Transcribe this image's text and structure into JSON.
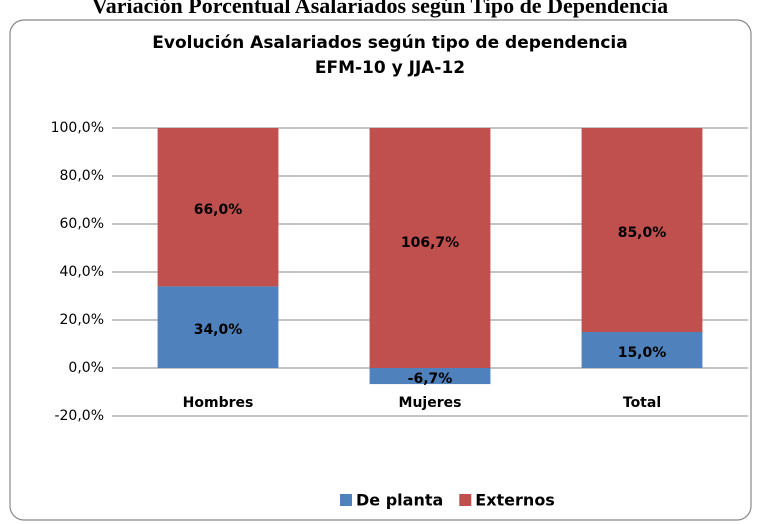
{
  "heading": "Variación Porcentual Asalariados según Tipo de Dependencia",
  "chart_data": {
    "type": "stacked_bar",
    "title": "Evolución Asalariados según tipo de dependencia",
    "subtitle": "EFM-10 y JJA-12",
    "categories": [
      "Hombres",
      "Mujeres",
      "Total"
    ],
    "series": [
      {
        "name": "De planta",
        "color": "#4f81bd",
        "values": [
          34.0,
          -6.7,
          15.0
        ],
        "value_labels": [
          "34,0%",
          "-6,7%",
          "15,0%"
        ]
      },
      {
        "name": "Externos",
        "color": "#c0504d",
        "values": [
          66.0,
          106.7,
          85.0
        ],
        "value_labels": [
          "66,0%",
          "106,7%",
          "85,0%"
        ]
      }
    ],
    "ylim": [
      -20,
      100
    ],
    "yticks": [
      {
        "value": -20,
        "label": "-20,0%"
      },
      {
        "value": 0,
        "label": "0,0%"
      },
      {
        "value": 20,
        "label": "20,0%"
      },
      {
        "value": 40,
        "label": "40,0%"
      },
      {
        "value": 60,
        "label": "60,0%"
      },
      {
        "value": 80,
        "label": "80,0%"
      },
      {
        "value": 100,
        "label": "100,0%"
      }
    ],
    "grid": true,
    "legend": "bottom"
  }
}
